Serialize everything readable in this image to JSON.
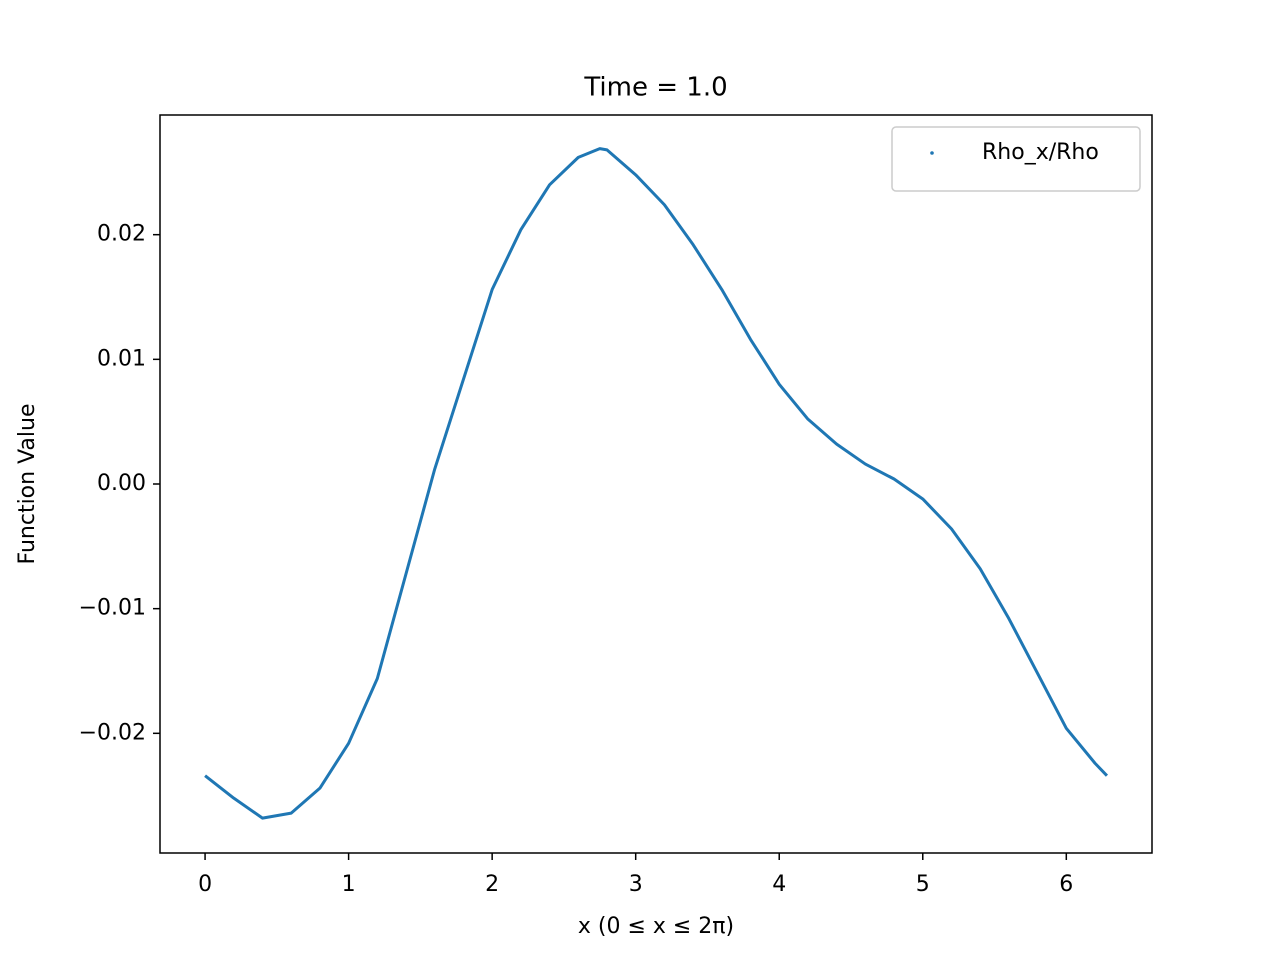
{
  "chart_data": {
    "type": "line",
    "title": "Time = 1.0",
    "x_label": "x (0 ≤ x ≤ 2π)",
    "y_label": "Function Value",
    "x": [
      0,
      0.2,
      0.4,
      0.6,
      0.8,
      1.0,
      1.2,
      1.4,
      1.6,
      1.8,
      2.0,
      2.2,
      2.4,
      2.6,
      2.75,
      2.8,
      3.0,
      3.2,
      3.4,
      3.6,
      3.8,
      4.0,
      4.2,
      4.4,
      4.6,
      4.8,
      5.0,
      5.2,
      5.4,
      5.6,
      5.8,
      6.0,
      6.2,
      6.283
    ],
    "series": [
      {
        "name": "Rho_x/Rho",
        "color": "#1f77b4",
        "values": [
          -0.0234,
          -0.0252,
          -0.0268,
          -0.0264,
          -0.0244,
          -0.0208,
          -0.0156,
          -0.0072,
          0.0012,
          0.0084,
          0.0156,
          0.0204,
          0.024,
          0.0262,
          0.0269,
          0.0268,
          0.0248,
          0.0224,
          0.0192,
          0.0156,
          0.0116,
          0.008,
          0.0052,
          0.0032,
          0.0016,
          0.0004,
          -0.0012,
          -0.0036,
          -0.0068,
          -0.0108,
          -0.0152,
          -0.0196,
          -0.0224,
          -0.0234
        ]
      }
    ],
    "xlim": [
      -0.314,
      6.597
    ],
    "xticks": [
      0,
      1,
      2,
      3,
      4,
      5,
      6
    ],
    "ylim": [
      -0.0296,
      0.0296
    ],
    "yticks": [
      {
        "value": -0.02,
        "label": "−0.02"
      },
      {
        "value": -0.01,
        "label": "−0.01"
      },
      {
        "value": 0,
        "label": "0.00"
      },
      0.01,
      0.02
    ],
    "legend": "upper right",
    "grid": false
  }
}
